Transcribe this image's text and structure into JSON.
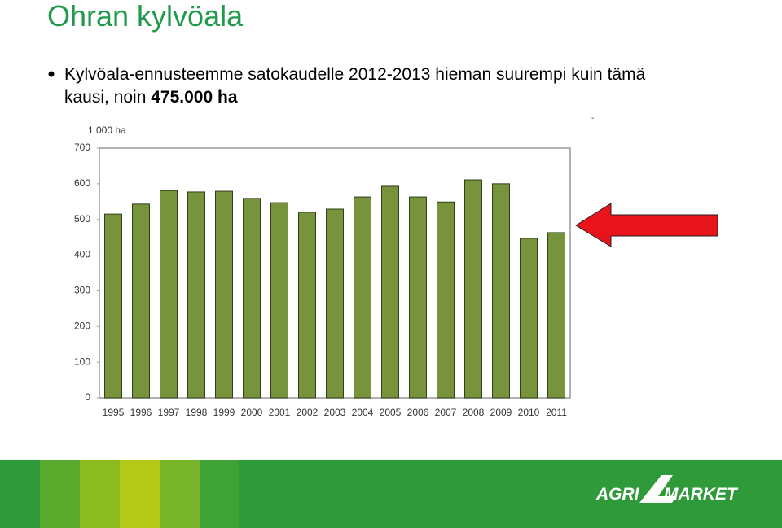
{
  "slide": {
    "title": "Ohran kylvöala",
    "bullet": {
      "line1": "Kylvöala-ennusteemme satokaudelle 2012-2013 hieman suurempi kuin tämä",
      "line2": "kausi, noin",
      "emphasis": "475.000 ha"
    },
    "mark": "-",
    "logo": {
      "left": "AGRI",
      "right": "MARKET"
    }
  },
  "chart_data": {
    "type": "bar",
    "unit_label": "1 000 ha",
    "categories": [
      "1995",
      "1996",
      "1997",
      "1998",
      "1999",
      "2000",
      "2001",
      "2002",
      "2003",
      "2004",
      "2005",
      "2006",
      "2007",
      "2008",
      "2009",
      "2010",
      "2011"
    ],
    "values": [
      515,
      543,
      581,
      577,
      579,
      559,
      547,
      520,
      529,
      563,
      593,
      563,
      549,
      611,
      600,
      447,
      463
    ],
    "color": "#77933c",
    "ylim": [
      0,
      700
    ],
    "yticks": [
      0,
      100,
      200,
      300,
      400,
      500,
      600,
      700
    ]
  }
}
